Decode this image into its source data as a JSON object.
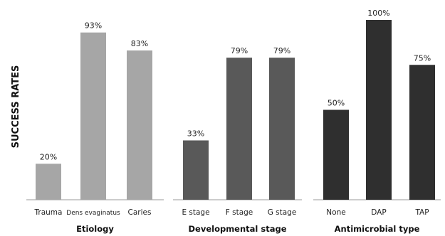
{
  "chart_data": {
    "type": "bar",
    "ylabel": "SUCCESS RATES",
    "ylim": [
      0,
      100
    ],
    "grid": false,
    "panels": [
      {
        "title": "Etiology",
        "categories": [
          "Trauma",
          "Dens evaginatus",
          "Caries"
        ],
        "values": [
          20,
          93,
          83
        ],
        "value_labels": [
          "20%",
          "93%",
          "83%"
        ],
        "color": "#a6a6a6"
      },
      {
        "title": "Developmental stage",
        "categories": [
          "E stage",
          "F stage",
          "G stage"
        ],
        "values": [
          33,
          79,
          79
        ],
        "value_labels": [
          "33%",
          "79%",
          "79%"
        ],
        "color": "#595959"
      },
      {
        "title": "Antimicrobial type",
        "categories": [
          "None",
          "DAP",
          "TAP"
        ],
        "values": [
          50,
          100,
          75
        ],
        "value_labels": [
          "50%",
          "100%",
          "75%"
        ],
        "color": "#2f2f2f"
      }
    ]
  }
}
